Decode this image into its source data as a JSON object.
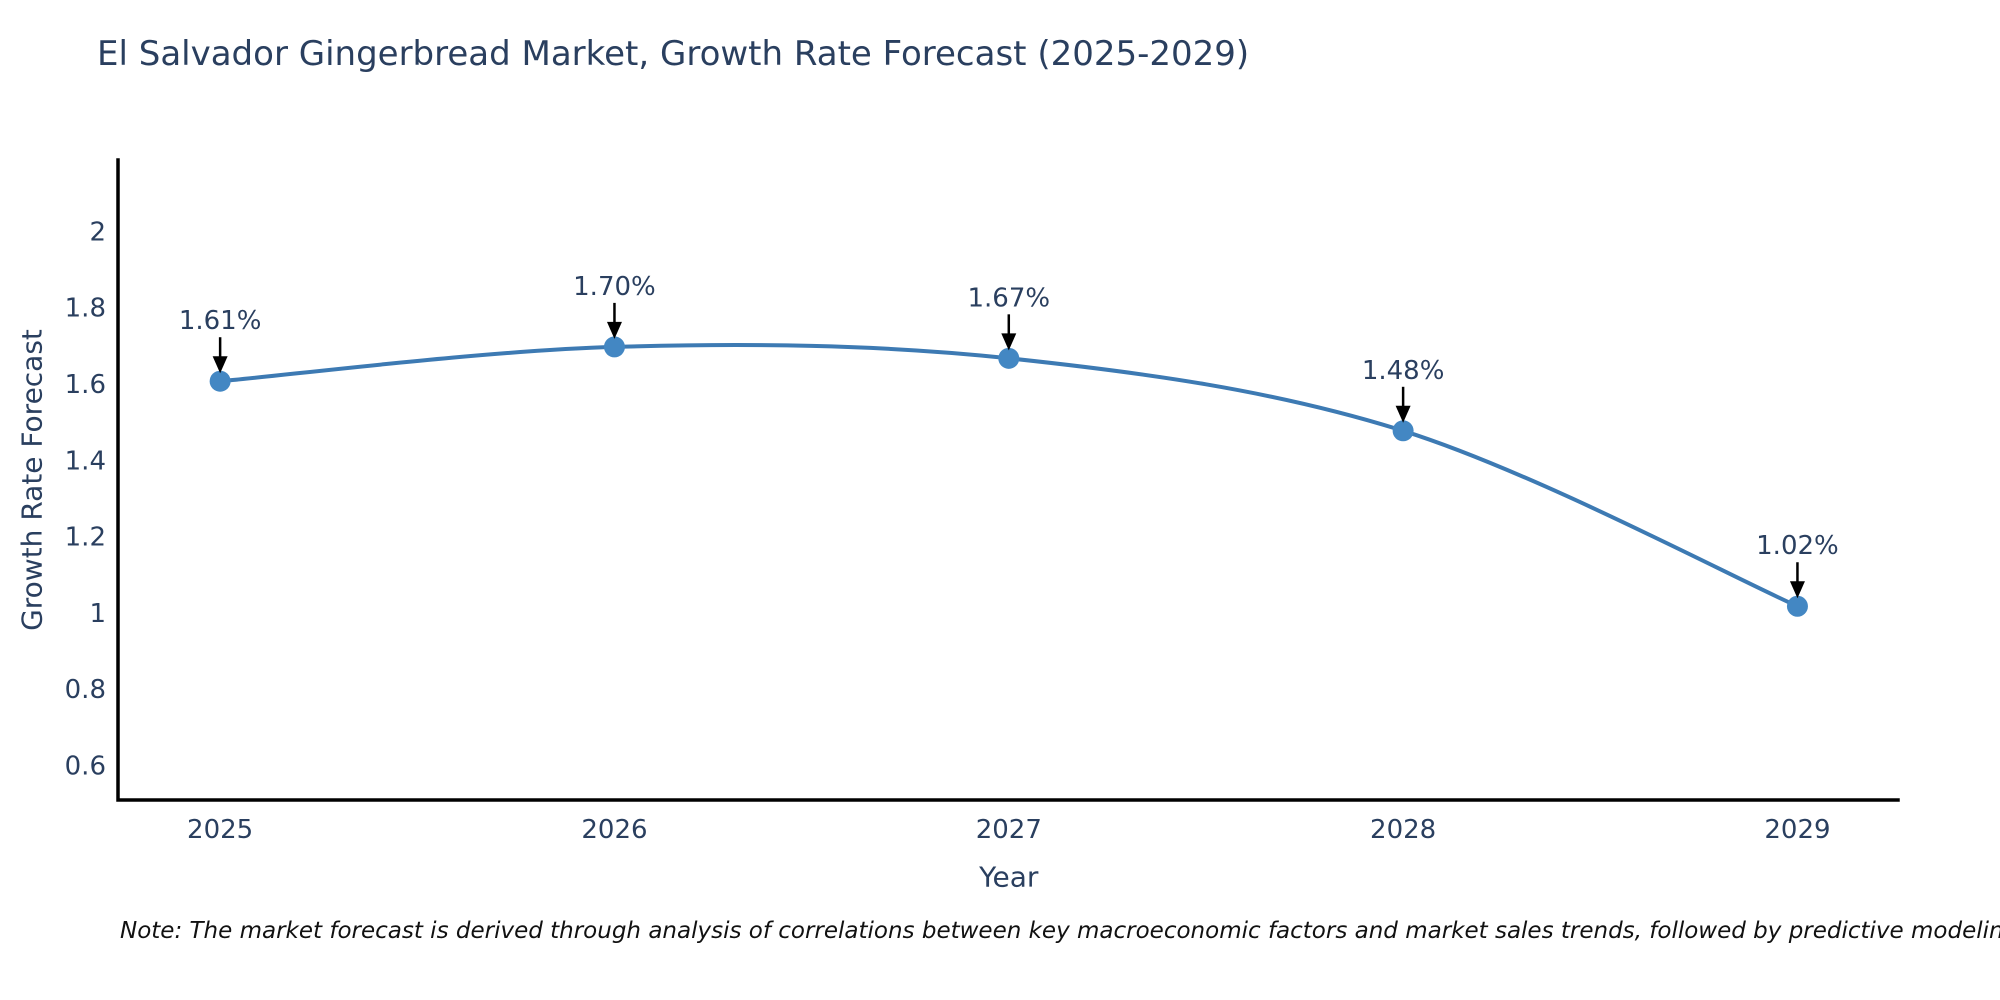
{
  "title": "El Salvador Gingerbread Market, Growth Rate Forecast (2025-2029)",
  "note": "Note: The market forecast is derived through analysis of correlations between key macroeconomic factors and market sales trends, followed by predictive modeling to project future sales.",
  "colors": {
    "text": "#2a3f5f",
    "line": "#3d7ab3",
    "marker": "#4387c3",
    "axis": "#000000",
    "arrow": "#000000",
    "background": "#ffffff"
  },
  "chart_data": {
    "type": "line",
    "title": "El Salvador Gingerbread Market, Growth Rate Forecast (2025-2029)",
    "xlabel": "Year",
    "ylabel": "Growth Rate Forecast",
    "x": [
      2025,
      2026,
      2027,
      2028,
      2029
    ],
    "y": [
      1.61,
      1.7,
      1.67,
      1.48,
      1.02
    ],
    "point_labels": [
      "1.61%",
      "1.70%",
      "1.67%",
      "1.48%",
      "1.02%"
    ],
    "x_tick_labels": [
      "2025",
      "2026",
      "2027",
      "2028",
      "2029"
    ],
    "y_ticks": [
      0.6,
      0.8,
      1,
      1.2,
      1.4,
      1.6,
      1.8,
      2
    ],
    "y_tick_labels": [
      "0.6",
      "0.8",
      "1",
      "1.2",
      "1.4",
      "1.6",
      "1.8",
      "2"
    ],
    "xlim": [
      2024.741,
      2029.255
    ],
    "ylim": [
      0.512,
      2.19
    ],
    "line_shape": "spline",
    "grid": false,
    "markers": true,
    "annotations_with_arrows": true,
    "legend": "none"
  }
}
